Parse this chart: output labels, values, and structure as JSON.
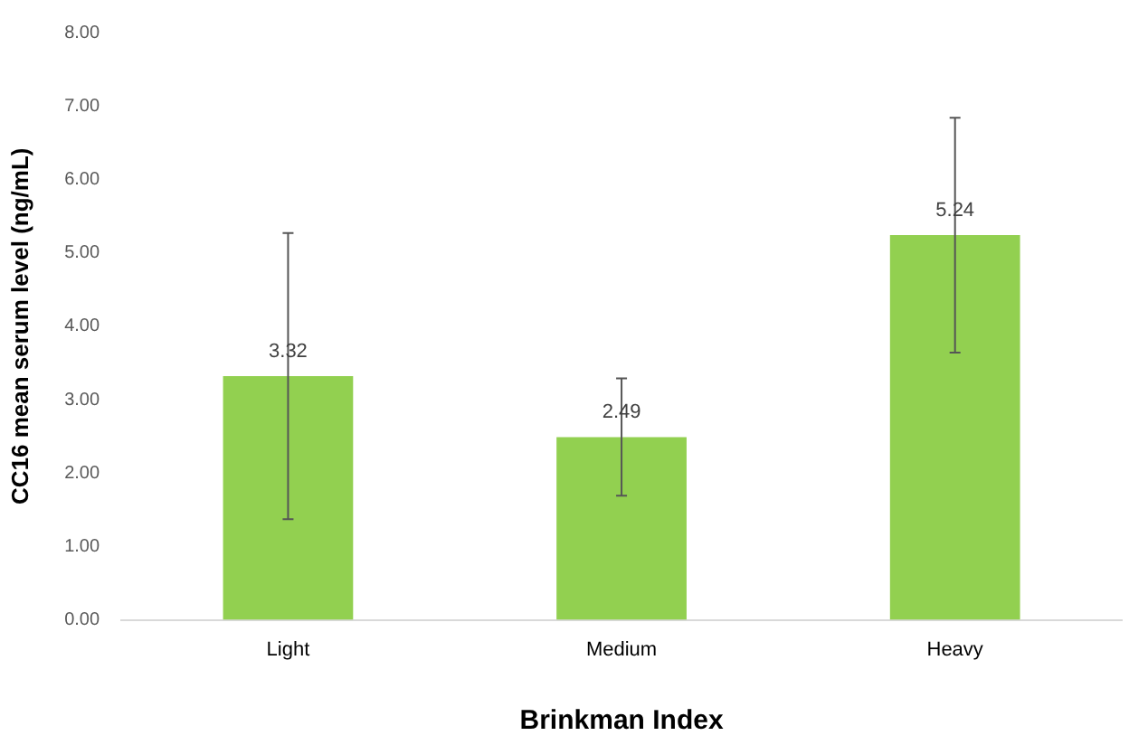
{
  "chart_data": {
    "type": "bar",
    "xlabel": "Brinkman Index",
    "ylabel": "CC16 mean serum level (ng/mL)",
    "categories": [
      "Light",
      "Medium",
      "Heavy"
    ],
    "values": [
      3.32,
      2.49,
      5.24
    ],
    "color": "#92d050",
    "errors": [
      1.95,
      0.8,
      1.6
    ],
    "ylim": [
      0,
      8
    ],
    "yticks": [
      {
        "value": 0,
        "label": "0.00"
      },
      {
        "value": 1,
        "label": "1.00"
      },
      {
        "value": 2,
        "label": "2.00"
      },
      {
        "value": 3,
        "label": "3.00"
      },
      {
        "value": 4,
        "label": "4.00"
      },
      {
        "value": 5,
        "label": "5.00"
      },
      {
        "value": 6,
        "label": "6.00"
      },
      {
        "value": 7,
        "label": "7.00"
      },
      {
        "value": 8,
        "label": "8.00"
      }
    ],
    "data_labels": true,
    "grid": false,
    "legend": false
  }
}
